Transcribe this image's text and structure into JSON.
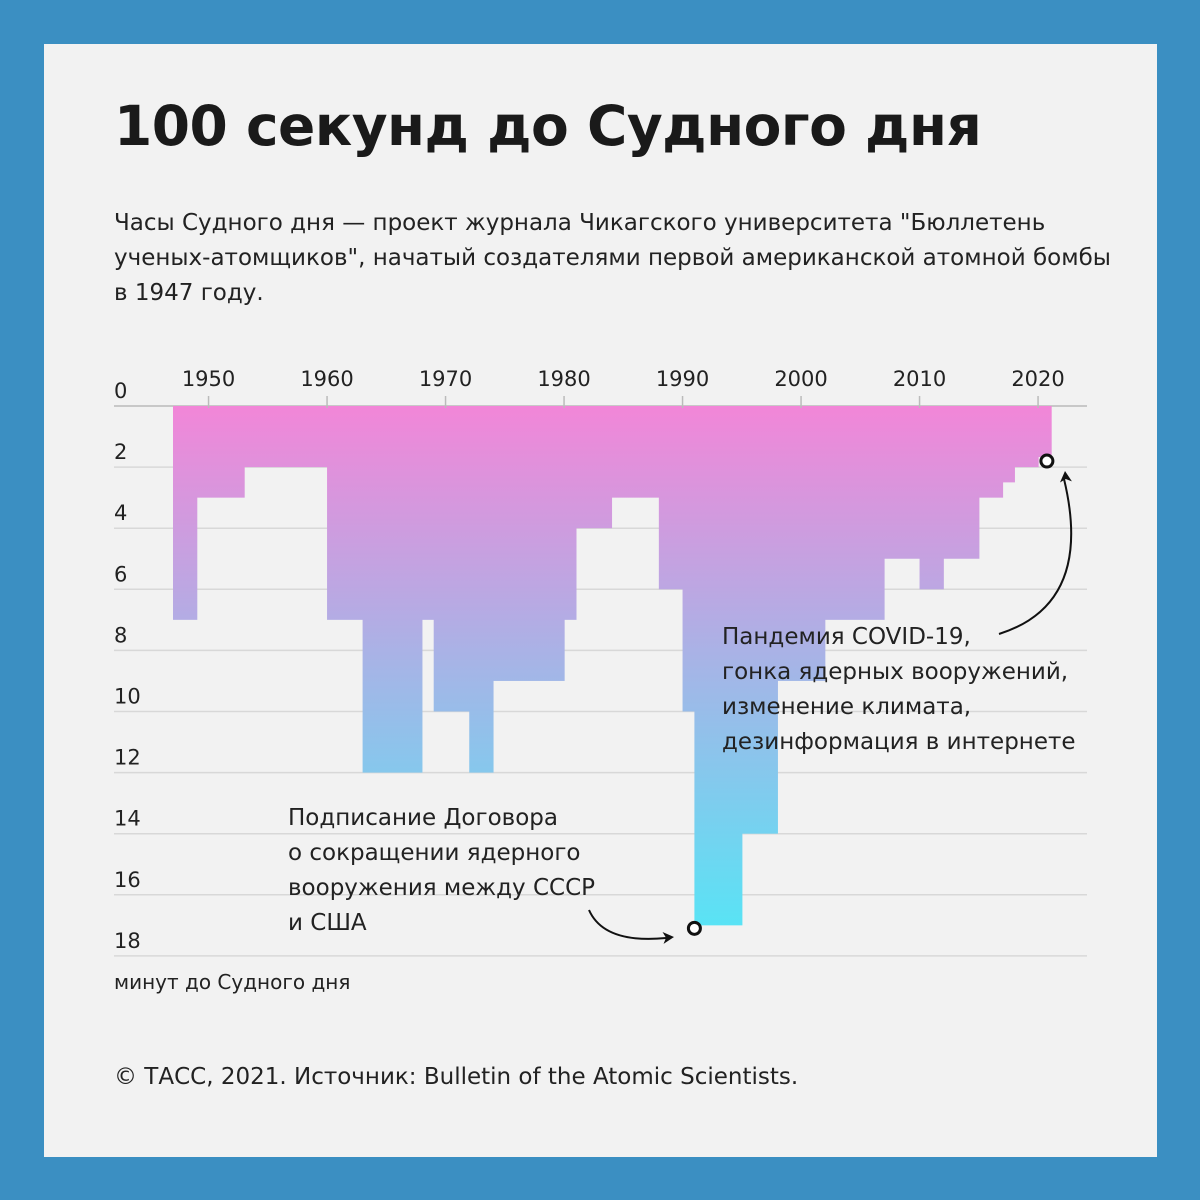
{
  "title": "100 секунд до Судного дня",
  "subtitle": "Часы Судного дня — проект журнала Чикагского университета \"Бюллетень ученых-атомщиков\", начатый создателями первой американской атомной бомбы в 1947 году.",
  "source": "© ТАСС, 2021. Источник: Bulletin of the Atomic Scientists.",
  "chart_data": {
    "type": "bar",
    "title": "100 секунд до Судного дня",
    "ylabel": "минут до Судного дня",
    "xlim": [
      1947,
      2022
    ],
    "ylim": [
      0,
      18
    ],
    "y_inverted": true,
    "x_ticks": [
      1950,
      1960,
      1970,
      1980,
      1990,
      2000,
      2010,
      2020
    ],
    "x_tick_labels": [
      "1950",
      "1960",
      "1970",
      "1980",
      "1990",
      "2000",
      "2010",
      "2020"
    ],
    "y_ticks": [
      0,
      2,
      4,
      6,
      8,
      10,
      12,
      14,
      16,
      18
    ],
    "y_tick_labels": [
      "0",
      "2",
      "4",
      "6",
      "8",
      "10",
      "12",
      "14",
      "16",
      "18"
    ],
    "grid": true,
    "gradient_colors": [
      "#f286d8",
      "#59e3f5"
    ],
    "series": [
      {
        "x": [
          1947,
          1949,
          1953,
          1960,
          1963,
          1968,
          1969,
          1972,
          1974,
          1980,
          1981,
          1984,
          1988,
          1990,
          1991,
          1995,
          1998,
          2002,
          2007,
          2010,
          2012,
          2015,
          2017,
          2018,
          2020
        ],
        "values": [
          7,
          3,
          2,
          7,
          12,
          7,
          10,
          12,
          9,
          7,
          4,
          3,
          6,
          10,
          17,
          14,
          9,
          7,
          5,
          6,
          5,
          3,
          2.5,
          2,
          1.67
        ]
      }
    ],
    "annotations": [
      {
        "id": "start",
        "year": 1991,
        "minutes": 17,
        "lines": [
          "Подписание Договора",
          "о сокращении ядерного",
          "вооружения между СССР",
          "и США"
        ]
      },
      {
        "id": "covid",
        "year": 2021,
        "minutes": 1.67,
        "lines": [
          "Пандемия COVID-19,",
          "гонка ядерных вооружений,",
          "изменение климата,",
          "дезинформация в интернете"
        ]
      }
    ]
  }
}
